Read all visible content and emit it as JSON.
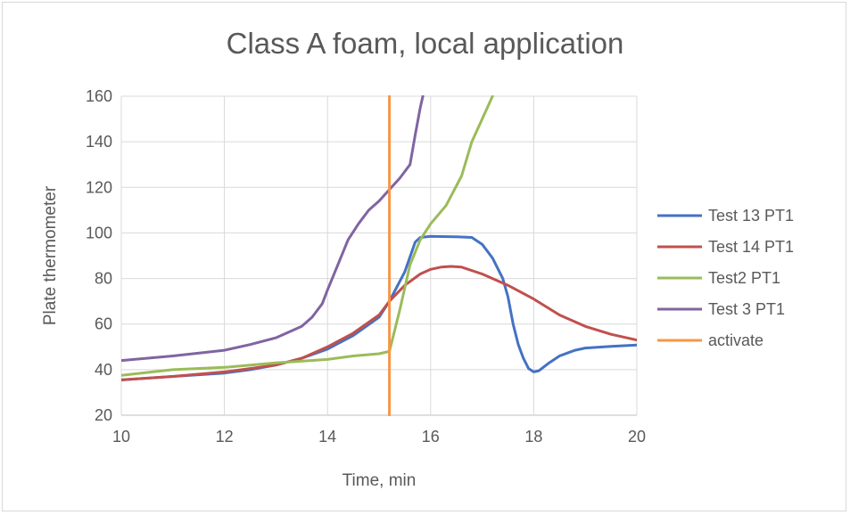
{
  "chart_data": {
    "type": "line",
    "title": "Class A foam, local application",
    "xlabel": "Time, min",
    "ylabel": "Plate thermometer",
    "xlim": [
      10,
      20
    ],
    "ylim": [
      20,
      160
    ],
    "xticks": [
      10,
      12,
      14,
      16,
      18,
      20
    ],
    "yticks": [
      20,
      40,
      60,
      80,
      100,
      120,
      140,
      160
    ],
    "grid": true,
    "legend_position": "right",
    "series": [
      {
        "name": "Test 13 PT1",
        "color": "#4472c4",
        "x": [
          10,
          11,
          12,
          12.5,
          13,
          13.5,
          14,
          14.5,
          15,
          15.2,
          15.5,
          15.7,
          15.8,
          16,
          16.5,
          16.8,
          17,
          17.2,
          17.4,
          17.5,
          17.6,
          17.7,
          17.8,
          17.9,
          18,
          18.1,
          18.3,
          18.5,
          18.8,
          19,
          19.5,
          20
        ],
        "y": [
          35.5,
          37,
          38.5,
          40,
          42,
          45,
          49,
          55,
          63,
          70,
          83,
          96,
          98,
          98.5,
          98.3,
          98,
          95,
          89,
          80,
          72,
          60,
          51,
          45,
          40.5,
          39,
          39.5,
          43,
          46,
          48.5,
          49.5,
          50.2,
          50.8
        ]
      },
      {
        "name": "Test 14 PT1",
        "color": "#c0504d",
        "x": [
          10,
          11,
          12,
          12.5,
          13,
          13.5,
          14,
          14.5,
          15,
          15.2,
          15.5,
          15.8,
          16,
          16.2,
          16.4,
          16.6,
          17,
          17.5,
          18,
          18.5,
          19,
          19.5,
          20
        ],
        "y": [
          35.5,
          37,
          39,
          40.5,
          42,
          45,
          50,
          56,
          64,
          70,
          77,
          82,
          84,
          85,
          85.3,
          85,
          82,
          77,
          71,
          64,
          59,
          55.5,
          53
        ]
      },
      {
        "name": "Test2 PT1",
        "color": "#9bbb59",
        "x": [
          10,
          11,
          12,
          13,
          14,
          14.5,
          15,
          15.2,
          15.4,
          15.6,
          15.8,
          16,
          16.3,
          16.6,
          16.8,
          17,
          17.2
        ],
        "y": [
          37.5,
          40,
          41,
          43,
          44.5,
          46,
          47,
          48,
          66,
          86,
          97,
          104,
          112,
          125,
          140,
          150,
          160
        ]
      },
      {
        "name": "Test 3 PT1",
        "color": "#8064a2",
        "x": [
          10,
          11,
          12,
          12.5,
          13,
          13.5,
          13.7,
          13.9,
          14,
          14.2,
          14.4,
          14.6,
          14.8,
          15,
          15.2,
          15.4,
          15.6,
          15.7,
          15.8,
          15.85
        ],
        "y": [
          44,
          46,
          48.5,
          51,
          54,
          59,
          63,
          69,
          75,
          86,
          97,
          104,
          110,
          114,
          119,
          124,
          130,
          143,
          155,
          160
        ]
      },
      {
        "name": "activate",
        "color": "#f79646",
        "x": [
          15.2,
          15.2
        ],
        "y": [
          20,
          160
        ]
      }
    ]
  }
}
